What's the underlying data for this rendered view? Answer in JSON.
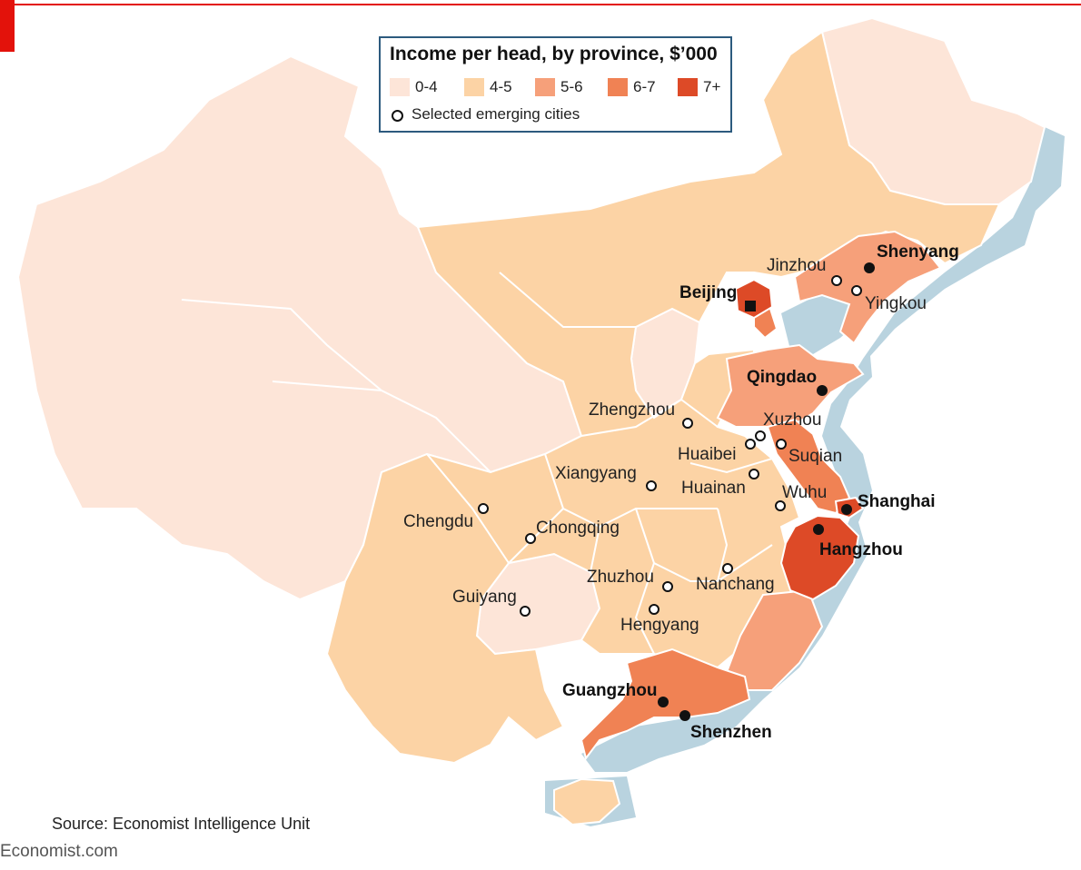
{
  "legend": {
    "title": "Income per head, by province, $’000",
    "bins": [
      {
        "label": "0-4",
        "color": "#fde5d8"
      },
      {
        "label": "4-5",
        "color": "#fcd3a5"
      },
      {
        "label": "5-6",
        "color": "#f6a07a"
      },
      {
        "label": "6-7",
        "color": "#f08254"
      },
      {
        "label": "7+",
        "color": "#dd4a27"
      }
    ],
    "city_marker_label": "Selected emerging cities"
  },
  "colors": {
    "sea": "#b9d3df",
    "border": "#ffffff",
    "city_fill": "#ffffff",
    "city_stroke": "#111111",
    "dot": "#111111",
    "accent": "#e3120b",
    "legend_border": "#2c5a7e"
  },
  "cities": {
    "beijing": "Beijing",
    "shenyang": "Shenyang",
    "jinzhou": "Jinzhou",
    "yingkou": "Yingkou",
    "qingdao": "Qingdao",
    "zhengzhou": "Zhengzhou",
    "xuzhou": "Xuzhou",
    "huaibei": "Huaibei",
    "suqian": "Suqian",
    "xiangyang": "Xiangyang",
    "huainan": "Huainan",
    "wuhu": "Wuhu",
    "shanghai": "Shanghai",
    "chengdu": "Chengdu",
    "chongqing": "Chongqing",
    "hangzhou": "Hangzhou",
    "zhuzhou": "Zhuzhou",
    "nanchang": "Nanchang",
    "guiyang": "Guiyang",
    "hengyang": "Hengyang",
    "guangzhou": "Guangzhou",
    "shenzhen": "Shenzhen"
  },
  "source": "Source: Economist Intelligence Unit",
  "brand": "Economist.com"
}
